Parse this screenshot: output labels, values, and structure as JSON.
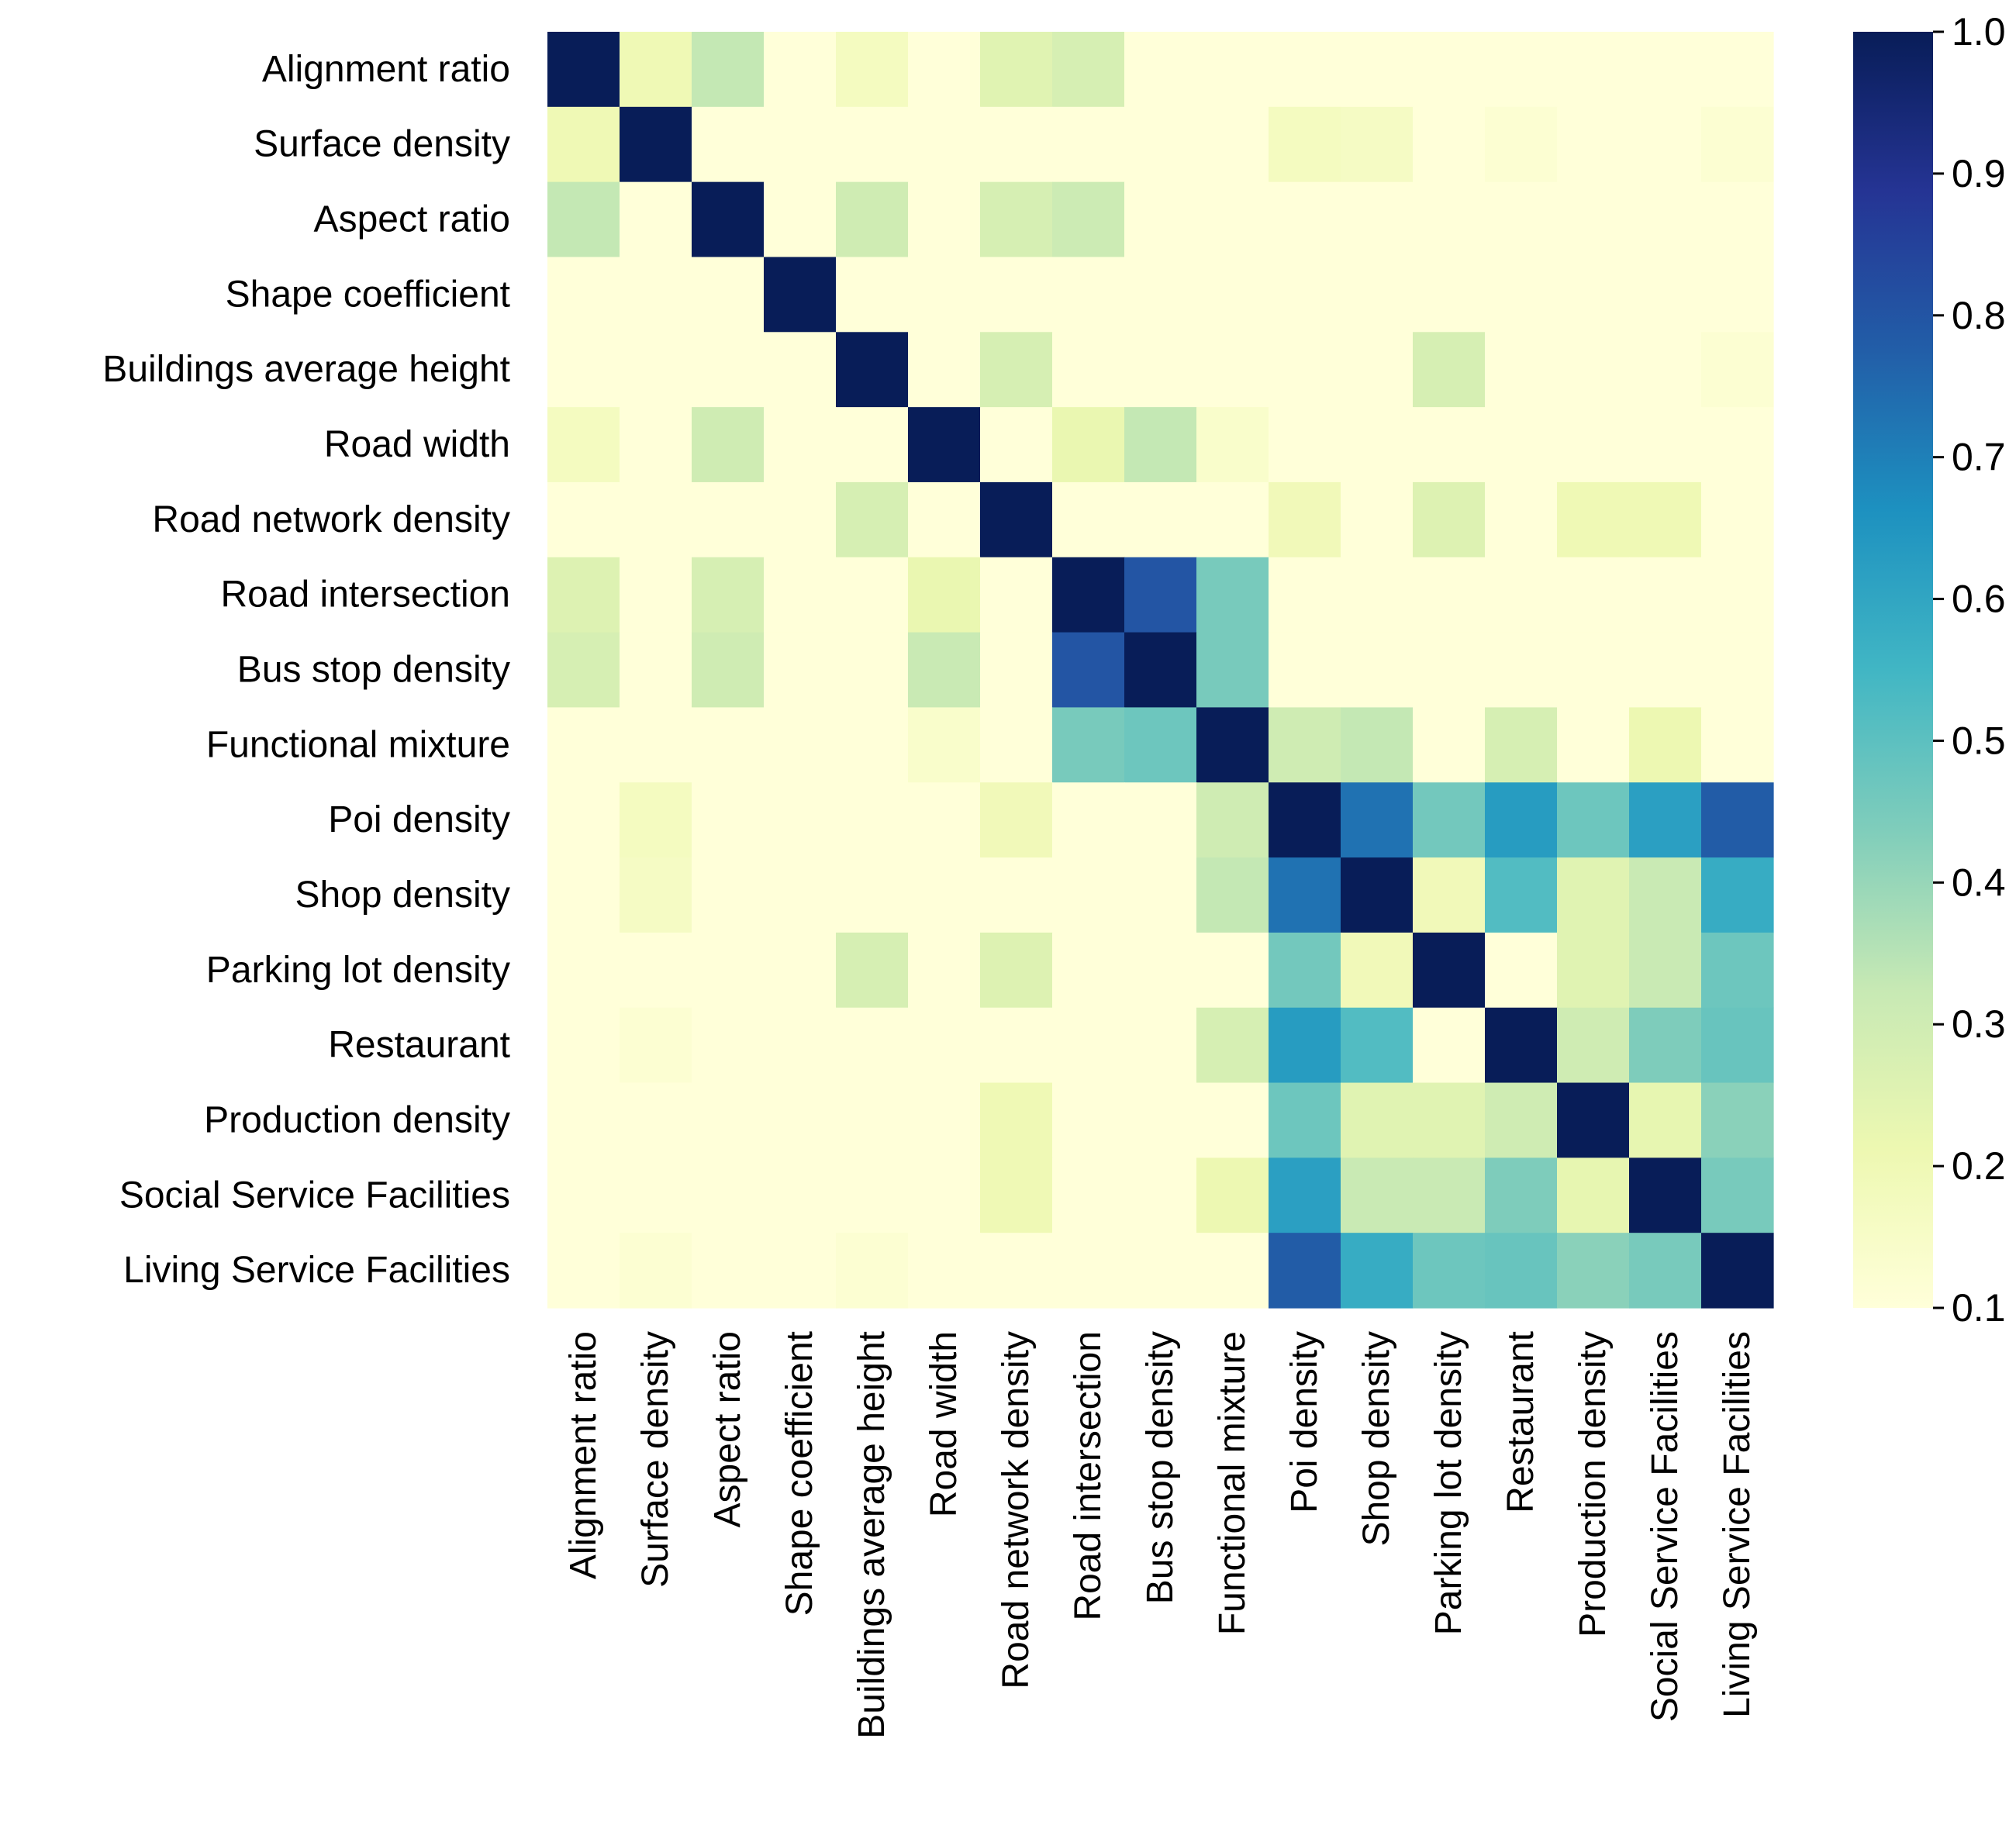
{
  "chart_data": {
    "type": "heatmap",
    "title": "",
    "xlabel": "",
    "ylabel": "",
    "labels": [
      "Alignment ratio",
      "Surface density",
      "Aspect ratio",
      "Shape coefficient",
      "Buildings average height",
      "Road width",
      "Road network density",
      "Road intersection",
      "Bus stop density",
      "Functional mixture",
      "Poi density",
      "Shop density",
      "Parking lot density",
      "Restaurant",
      "Production density",
      "Social Service Facilities",
      "Living Service Facilities"
    ],
    "values": [
      [
        1.0,
        0.2,
        0.33,
        0.1,
        0.17,
        0.1,
        0.25,
        0.28,
        0.1,
        0.1,
        0.1,
        0.1,
        0.1,
        0.1,
        0.1,
        0.1,
        0.1
      ],
      [
        0.2,
        1.0,
        0.1,
        0.1,
        0.1,
        0.1,
        0.1,
        0.1,
        0.1,
        0.1,
        0.17,
        0.16,
        0.1,
        0.12,
        0.1,
        0.1,
        0.12
      ],
      [
        0.33,
        0.1,
        1.0,
        0.1,
        0.3,
        0.1,
        0.28,
        0.31,
        0.1,
        0.1,
        0.1,
        0.1,
        0.1,
        0.1,
        0.1,
        0.1,
        0.1
      ],
      [
        0.1,
        0.1,
        0.1,
        1.0,
        0.1,
        0.1,
        0.1,
        0.1,
        0.1,
        0.1,
        0.1,
        0.1,
        0.1,
        0.1,
        0.1,
        0.1,
        0.1
      ],
      [
        0.1,
        0.1,
        0.1,
        0.1,
        1.0,
        0.1,
        0.28,
        0.1,
        0.1,
        0.1,
        0.1,
        0.1,
        0.28,
        0.1,
        0.1,
        0.1,
        0.12
      ],
      [
        0.17,
        0.1,
        0.3,
        0.1,
        0.1,
        1.0,
        0.1,
        0.22,
        0.33,
        0.14,
        0.1,
        0.1,
        0.1,
        0.1,
        0.1,
        0.1,
        0.1
      ],
      [
        0.1,
        0.1,
        0.1,
        0.1,
        0.28,
        0.1,
        1.0,
        0.1,
        0.1,
        0.1,
        0.19,
        0.1,
        0.26,
        0.1,
        0.2,
        0.2,
        0.1
      ],
      [
        0.26,
        0.1,
        0.28,
        0.1,
        0.1,
        0.22,
        0.1,
        1.0,
        0.8,
        0.45,
        0.1,
        0.1,
        0.1,
        0.1,
        0.1,
        0.1,
        0.1
      ],
      [
        0.28,
        0.1,
        0.3,
        0.1,
        0.1,
        0.32,
        0.1,
        0.8,
        1.0,
        0.45,
        0.1,
        0.1,
        0.1,
        0.1,
        0.1,
        0.1,
        0.1
      ],
      [
        0.1,
        0.1,
        0.1,
        0.1,
        0.1,
        0.14,
        0.1,
        0.45,
        0.47,
        1.0,
        0.3,
        0.33,
        0.1,
        0.28,
        0.1,
        0.21,
        0.1
      ],
      [
        0.1,
        0.17,
        0.1,
        0.1,
        0.1,
        0.1,
        0.19,
        0.1,
        0.1,
        0.3,
        1.0,
        0.73,
        0.46,
        0.63,
        0.47,
        0.62,
        0.78
      ],
      [
        0.1,
        0.16,
        0.1,
        0.1,
        0.1,
        0.1,
        0.1,
        0.1,
        0.1,
        0.33,
        0.73,
        1.0,
        0.19,
        0.52,
        0.25,
        0.32,
        0.58
      ],
      [
        0.1,
        0.1,
        0.1,
        0.1,
        0.28,
        0.1,
        0.26,
        0.1,
        0.1,
        0.1,
        0.46,
        0.19,
        1.0,
        0.1,
        0.25,
        0.32,
        0.47
      ],
      [
        0.1,
        0.12,
        0.1,
        0.1,
        0.1,
        0.1,
        0.1,
        0.1,
        0.1,
        0.28,
        0.63,
        0.52,
        0.1,
        1.0,
        0.3,
        0.44,
        0.48
      ],
      [
        0.1,
        0.1,
        0.1,
        0.1,
        0.1,
        0.1,
        0.2,
        0.1,
        0.1,
        0.1,
        0.47,
        0.25,
        0.25,
        0.3,
        1.0,
        0.23,
        0.42
      ],
      [
        0.1,
        0.1,
        0.1,
        0.1,
        0.1,
        0.1,
        0.2,
        0.1,
        0.1,
        0.21,
        0.62,
        0.32,
        0.32,
        0.44,
        0.23,
        1.0,
        0.45
      ],
      [
        0.1,
        0.12,
        0.1,
        0.1,
        0.12,
        0.1,
        0.1,
        0.1,
        0.1,
        0.1,
        0.78,
        0.58,
        0.47,
        0.48,
        0.42,
        0.45,
        1.0
      ]
    ],
    "colorbar": {
      "colormap": "YlGnBu",
      "vmin": 0.1,
      "vmax": 1.0,
      "ticks": [
        "0.1",
        "0.2",
        "0.3",
        "0.4",
        "0.5",
        "0.6",
        "0.7",
        "0.8",
        "0.9",
        "1.0"
      ]
    },
    "colormap_stops": [
      "#ffffd9",
      "#edf8b1",
      "#c7e9b4",
      "#7fcdbb",
      "#41b6c4",
      "#1d91c0",
      "#225ea8",
      "#253494",
      "#081d58"
    ]
  }
}
